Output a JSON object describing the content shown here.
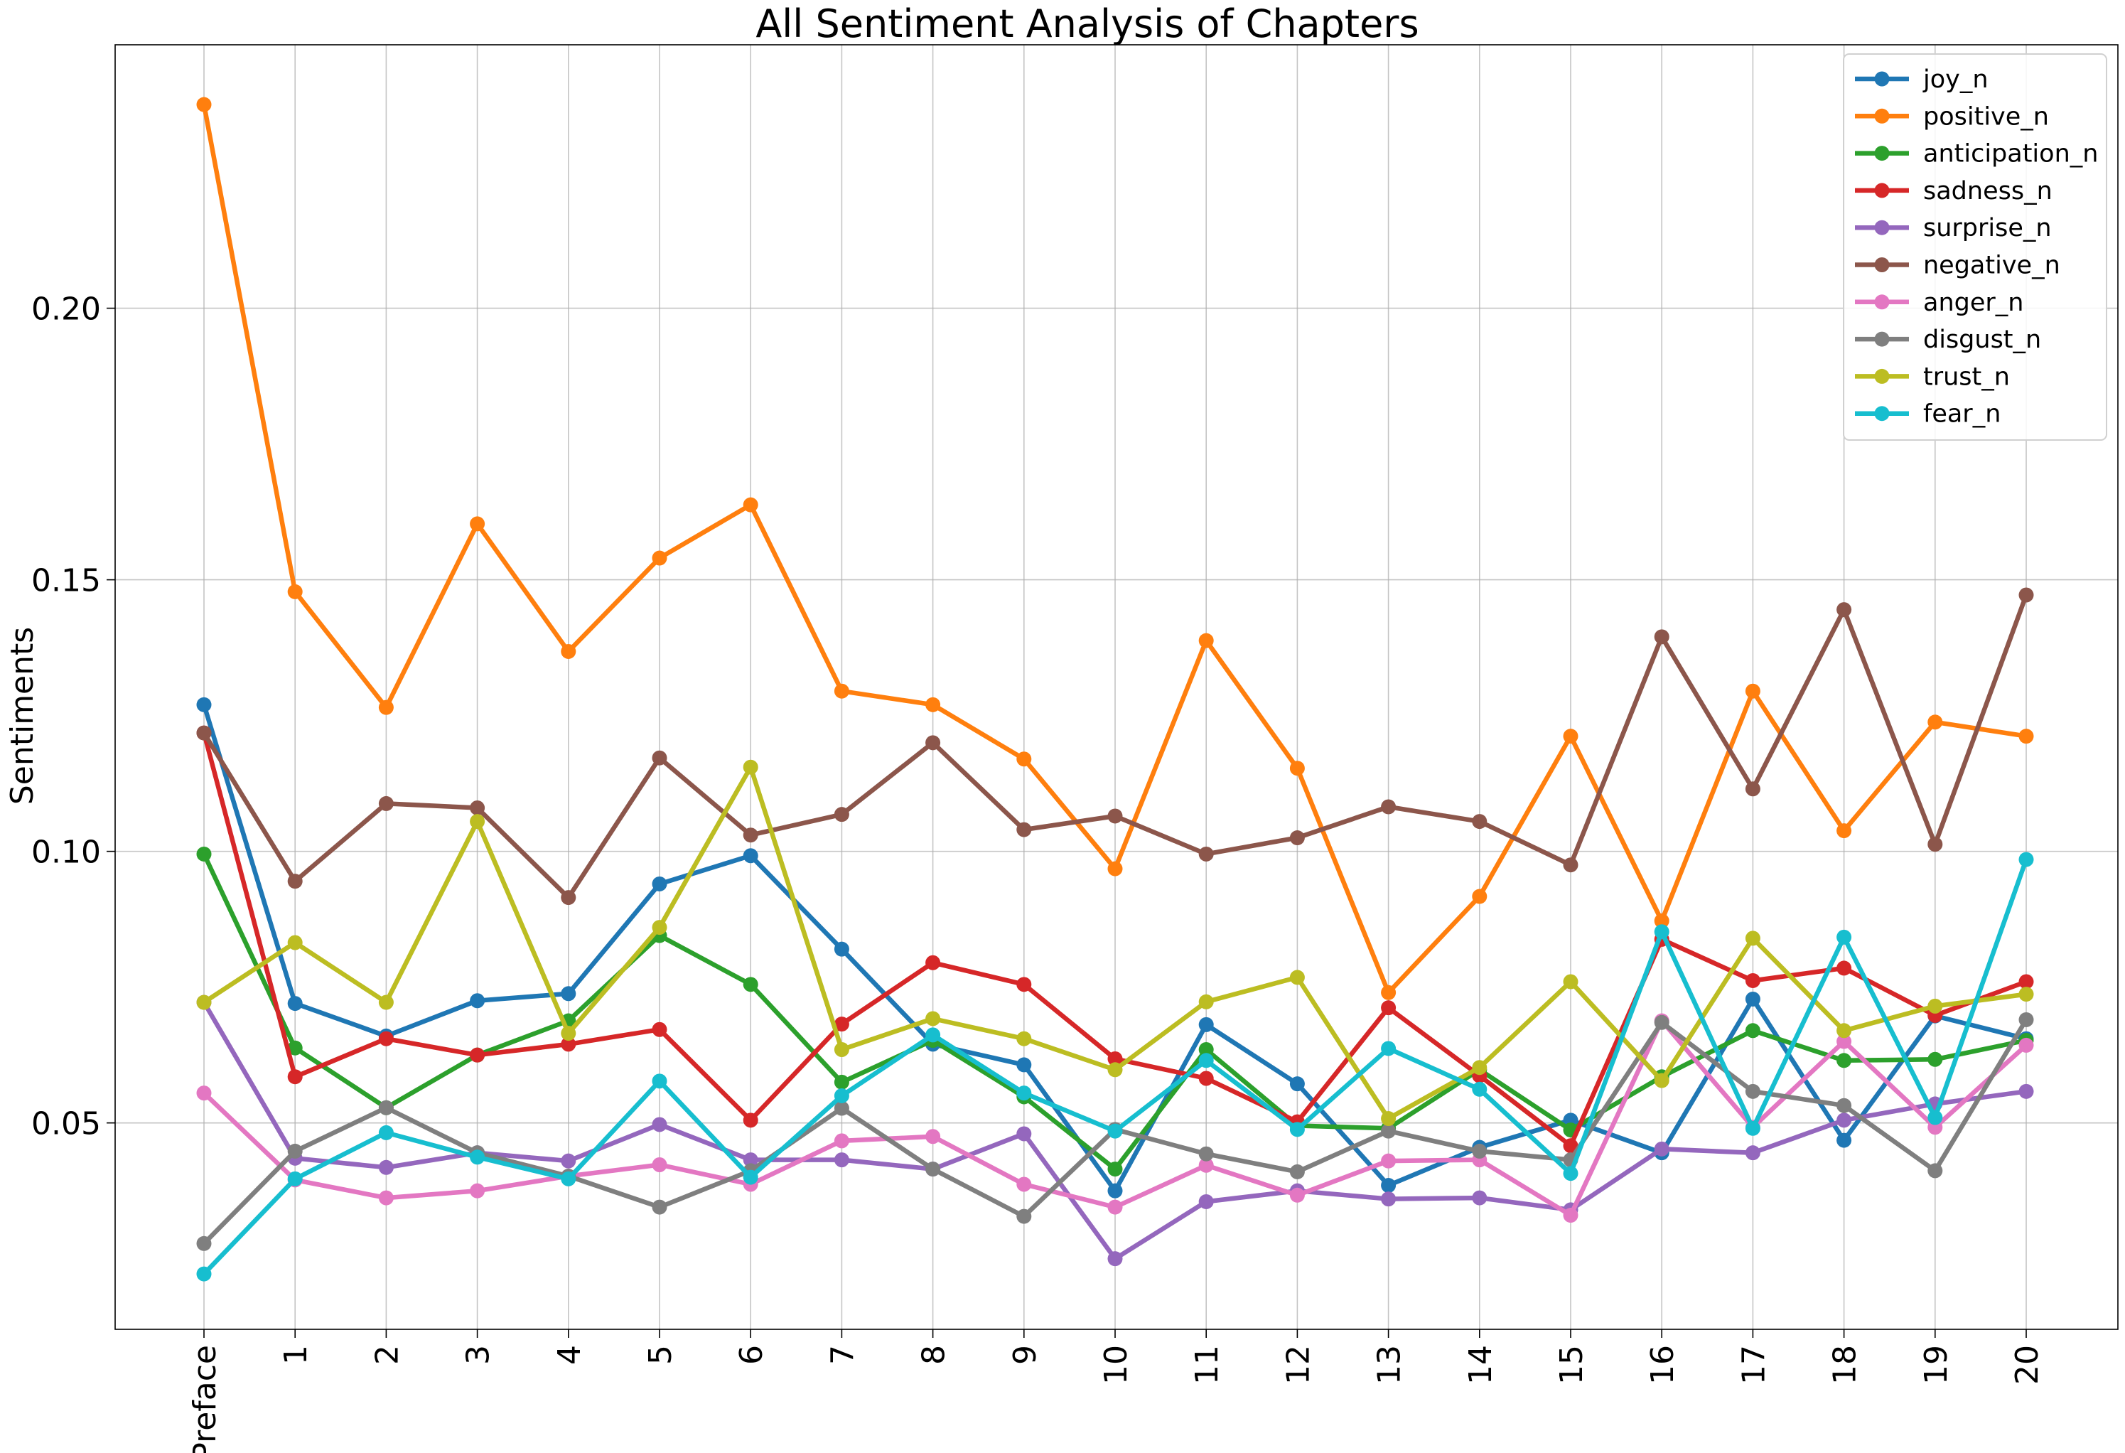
{
  "chart_data": {
    "type": "line",
    "title": "All Sentiment Analysis of Chapters",
    "xlabel": "",
    "ylabel": "Sentiments",
    "categories": [
      "Preface",
      "1",
      "2",
      "3",
      "4",
      "5",
      "6",
      "7",
      "8",
      "9",
      "10",
      "11",
      "12",
      "13",
      "14",
      "15",
      "16",
      "17",
      "18",
      "19",
      "20"
    ],
    "ylim": [
      0.012,
      0.2485
    ],
    "yticks": [
      0.05,
      0.1,
      0.15,
      0.2
    ],
    "ytick_labels": [
      "0.05",
      "0.10",
      "0.15",
      "0.20"
    ],
    "grid": true,
    "legend_position": "top-right",
    "series": [
      {
        "name": "joy_n",
        "color": "#1f77b4",
        "values": [
          0.127,
          0.072,
          0.066,
          0.0725,
          0.0738,
          0.094,
          0.0992,
          0.082,
          0.0645,
          0.0607,
          0.0375,
          0.0681,
          0.0572,
          0.0385,
          0.0455,
          0.0505,
          0.0445,
          0.0728,
          0.0468,
          0.0697,
          0.0655
        ]
      },
      {
        "name": "positive_n",
        "color": "#ff7f0e",
        "values": [
          0.2375,
          0.1478,
          0.1265,
          0.1603,
          0.1368,
          0.154,
          0.1638,
          0.1295,
          0.127,
          0.117,
          0.0968,
          0.1388,
          0.1153,
          0.074,
          0.0917,
          0.1212,
          0.0872,
          0.1295,
          0.1038,
          0.1238,
          0.1212
        ]
      },
      {
        "name": "anticipation_n",
        "color": "#2ca02c",
        "values": [
          0.0995,
          0.0638,
          0.0528,
          0.0625,
          0.0688,
          0.0845,
          0.0755,
          0.0575,
          0.0652,
          0.0548,
          0.0415,
          0.0635,
          0.0495,
          0.049,
          0.0598,
          0.0487,
          0.0585,
          0.067,
          0.0615,
          0.0617,
          0.0652
        ]
      },
      {
        "name": "sadness_n",
        "color": "#d62728",
        "values": [
          0.1218,
          0.0585,
          0.0655,
          0.0625,
          0.0645,
          0.0672,
          0.0505,
          0.0682,
          0.0795,
          0.0755,
          0.0618,
          0.0582,
          0.0502,
          0.0712,
          0.0587,
          0.0458,
          0.0838,
          0.0762,
          0.0785,
          0.0698,
          0.076
        ]
      },
      {
        "name": "surprise_n",
        "color": "#9467bd",
        "values": [
          0.0722,
          0.0435,
          0.0418,
          0.0445,
          0.043,
          0.0497,
          0.0432,
          0.0432,
          0.0415,
          0.048,
          0.025,
          0.0355,
          0.0375,
          0.036,
          0.0362,
          0.034,
          0.0452,
          0.0445,
          0.0505,
          0.0535,
          0.0558
        ]
      },
      {
        "name": "negative_n",
        "color": "#8c564b",
        "values": [
          0.1218,
          0.0945,
          0.1088,
          0.108,
          0.0915,
          0.1172,
          0.103,
          0.1068,
          0.12,
          0.104,
          0.1065,
          0.0995,
          0.1025,
          0.1082,
          0.1055,
          0.0975,
          0.1395,
          0.1115,
          0.1445,
          0.1013,
          0.1472
        ]
      },
      {
        "name": "anger_n",
        "color": "#e377c2",
        "values": [
          0.0555,
          0.0395,
          0.0362,
          0.0375,
          0.0402,
          0.0423,
          0.0387,
          0.0467,
          0.0475,
          0.0387,
          0.0345,
          0.0422,
          0.0367,
          0.043,
          0.0432,
          0.033,
          0.0688,
          0.0492,
          0.065,
          0.0492,
          0.0643
        ]
      },
      {
        "name": "disgust_n",
        "color": "#7f7f7f",
        "values": [
          0.0278,
          0.0448,
          0.0528,
          0.0445,
          0.0402,
          0.0345,
          0.0412,
          0.0527,
          0.0415,
          0.0328,
          0.0488,
          0.0443,
          0.041,
          0.0485,
          0.0448,
          0.0432,
          0.0685,
          0.0558,
          0.0532,
          0.0412,
          0.069
        ]
      },
      {
        "name": "trust_n",
        "color": "#bcbd22",
        "values": [
          0.0722,
          0.0832,
          0.0722,
          0.1055,
          0.0665,
          0.086,
          0.1155,
          0.0635,
          0.0692,
          0.0655,
          0.0598,
          0.0723,
          0.0768,
          0.0508,
          0.0602,
          0.076,
          0.0578,
          0.084,
          0.067,
          0.0715,
          0.0737
        ]
      },
      {
        "name": "fear_n",
        "color": "#17becf",
        "values": [
          0.0222,
          0.0397,
          0.0482,
          0.0437,
          0.0397,
          0.0577,
          0.04,
          0.055,
          0.0662,
          0.0555,
          0.0485,
          0.0615,
          0.0488,
          0.0637,
          0.0562,
          0.0407,
          0.0852,
          0.049,
          0.0842,
          0.051,
          0.0985
        ]
      }
    ]
  }
}
